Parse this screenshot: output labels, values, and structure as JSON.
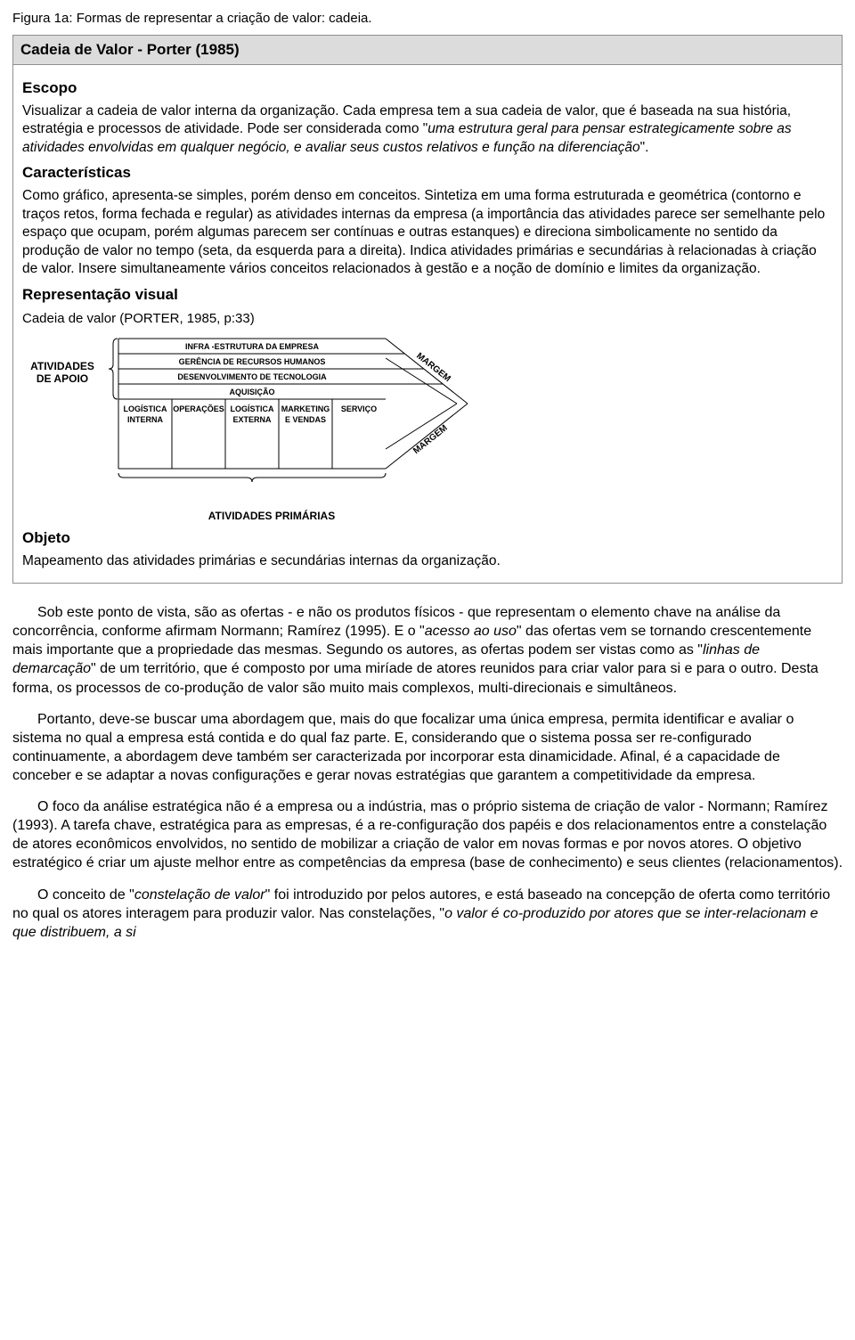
{
  "caption": "Figura 1a: Formas de representar a criação de valor: cadeia.",
  "header": "Cadeia de Valor - Porter (1985)",
  "sections": {
    "escopo": {
      "title": "Escopo",
      "p1a": "Visualizar a cadeia de valor interna da organização. Cada empresa tem a sua cadeia de valor, que é baseada na sua história, estratégia e processos de atividade. Pode ser considerada como \"",
      "p1_italic": "uma estrutura geral para pensar estrategicamente sobre as atividades envolvidas em qualquer negócio, e avaliar seus custos relativos e função na diferenciação",
      "p1b": "\"."
    },
    "caracteristicas": {
      "title": "Características",
      "p1": "Como gráfico, apresenta-se simples, porém denso em conceitos. Sintetiza em uma forma estruturada e geométrica (contorno e traços retos, forma fechada e regular) as atividades internas da empresa (a importância das atividades parece ser semelhante pelo espaço que ocupam, porém algumas parecem ser contínuas e outras estanques) e direciona simbolicamente no sentido da produção de valor no tempo (seta, da esquerda para a direita). Indica atividades primárias e secundárias à relacionadas à criação de valor. Insere simultaneamente vários conceitos relacionados à gestão e a noção de domínio e limites da organização."
    },
    "representacao": {
      "title": "Representação visual",
      "subcaption": "Cadeia de valor (PORTER, 1985, p:33)"
    },
    "objeto": {
      "title": "Objeto",
      "p1": "Mapeamento das atividades primárias e secundárias internas da organização."
    }
  },
  "diagram": {
    "side_label_l1": "ATIVIDADES",
    "side_label_l2": "DE APOIO",
    "primary_label": "ATIVIDADES PRIMÁRIAS",
    "support": [
      "INFRA -ESTRUTURA DA EMPRESA",
      "GERÊNCIA DE RECURSOS HUMANOS",
      "DESENVOLVIMENTO DE TECNOLOGIA",
      "AQUISIÇÃO"
    ],
    "primary": [
      {
        "l1": "LOGÍSTICA",
        "l2": "INTERNA"
      },
      {
        "l1": "OPERAÇÕES",
        "l2": ""
      },
      {
        "l1": "LOGÍSTICA",
        "l2": "EXTERNA"
      },
      {
        "l1": "MARKETING",
        "l2": "E VENDAS"
      },
      {
        "l1": "SERVIÇO",
        "l2": ""
      }
    ],
    "margem": "MARGEM",
    "style": {
      "stroke": "#000000",
      "stroke_width": 1,
      "support_font_size": 9,
      "primary_font_size": 9,
      "margem_font_size": 10,
      "brace_stroke": "#000000"
    }
  },
  "body": {
    "p1_a": "Sob este ponto de vista, são as ofertas - e não os produtos físicos - que representam o elemento chave na análise da concorrência, conforme afirmam Normann; Ramírez (1995). E o \"",
    "p1_i1": "acesso ao uso",
    "p1_b": "\" das ofertas vem se tornando crescentemente mais importante que a propriedade das mesmas. Segundo os autores, as ofertas podem ser vistas como as \"",
    "p1_i2": "linhas de demarcação",
    "p1_c": "\" de um território, que é composto por uma miríade de atores reunidos para criar valor para si e para o outro. Desta forma, os processos de co-produção de valor são muito mais complexos, multi-direcionais e simultâneos.",
    "p2": "Portanto, deve-se buscar uma abordagem que, mais do que focalizar uma única empresa, permita identificar e avaliar o sistema no qual a empresa está contida e do qual faz parte. E, considerando que o sistema possa ser re-configurado continuamente, a abordagem deve também ser caracterizada por incorporar esta dinamicidade. Afinal, é a capacidade de conceber e se adaptar a novas configurações e gerar novas estratégias que garantem a competitividade da empresa.",
    "p3": "O foco da análise estratégica não é a empresa ou a indústria, mas o próprio sistema de criação de valor - Normann; Ramírez (1993).  A tarefa chave, estratégica para as empresas, é a re-configuração dos papéis e dos relacionamentos entre a constelação de atores econômicos envolvidos, no sentido de mobilizar a criação de valor em novas formas e por novos atores. O objetivo estratégico é criar um ajuste melhor entre as competências da empresa (base de conhecimento) e seus clientes (relacionamentos).",
    "p4_a": "O conceito de \"",
    "p4_i1": "constelação de valor",
    "p4_b": "\" foi introduzido por pelos autores, e está baseado na concepção de oferta como território no qual os atores interagem para produzir valor. Nas constelações, \"",
    "p4_i2": "o valor é co-produzido por atores que se inter-relacionam e que distribuem, a si"
  }
}
